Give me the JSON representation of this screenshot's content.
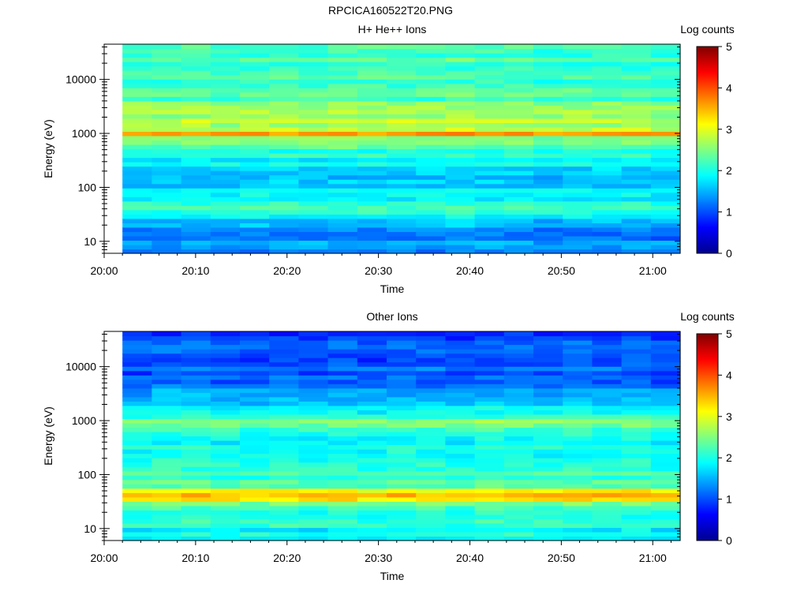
{
  "figure": {
    "title": "RPCICA160522T20.PNG"
  },
  "colors": [
    "#00008f",
    "#0000ff",
    "#0080ff",
    "#00ffff",
    "#80ff80",
    "#ffff00",
    "#ff8000",
    "#ff0000",
    "#800000"
  ],
  "chart_data": [
    {
      "type": "heatmap",
      "title": "H+ He++ Ions",
      "xlabel": "Time",
      "ylabel": "Energy (eV)",
      "x_ticks": [
        "20:00",
        "20:10",
        "20:20",
        "20:30",
        "20:40",
        "20:50",
        "21:00"
      ],
      "x_range": [
        "20:00",
        "21:03"
      ],
      "data_x_range": [
        "20:02",
        "21:03"
      ],
      "y_scale": "log",
      "y_range": [
        6,
        45000
      ],
      "y_ticks": [
        "10",
        "100",
        "1000",
        "10000"
      ],
      "colorbar": {
        "label": "Log counts",
        "range": [
          0,
          5
        ],
        "ticks": [
          "0",
          "1",
          "2",
          "3",
          "4",
          "5"
        ]
      },
      "time_bins": 19,
      "profile": [
        {
          "energy": 8,
          "value": 1.3
        },
        {
          "energy": 15,
          "value": 1.35
        },
        {
          "energy": 28,
          "value": 1.6
        },
        {
          "energy": 45,
          "value": 2.35
        },
        {
          "energy": 65,
          "value": 1.75
        },
        {
          "energy": 150,
          "value": 1.65
        },
        {
          "energy": 400,
          "value": 1.95
        },
        {
          "energy": 800,
          "value": 2.4
        },
        {
          "energy": 1000,
          "value": 3.55
        },
        {
          "energy": 1200,
          "value": 2.8
        },
        {
          "energy": 2300,
          "value": 2.6
        },
        {
          "energy": 5000,
          "value": 2.2
        },
        {
          "energy": 20000,
          "value": 2.15
        }
      ]
    },
    {
      "type": "heatmap",
      "title": "Other Ions",
      "xlabel": "Time",
      "ylabel": "Energy (eV)",
      "x_ticks": [
        "20:00",
        "20:10",
        "20:20",
        "20:30",
        "20:40",
        "20:50",
        "21:00"
      ],
      "x_range": [
        "20:00",
        "21:03"
      ],
      "data_x_range": [
        "20:02",
        "21:03"
      ],
      "y_scale": "log",
      "y_range": [
        6,
        45000
      ],
      "y_ticks": [
        "10",
        "100",
        "1000",
        "10000"
      ],
      "colorbar": {
        "label": "Log counts",
        "range": [
          0,
          5
        ],
        "ticks": [
          "0",
          "1",
          "2",
          "3",
          "4",
          "5"
        ]
      },
      "time_bins": 19,
      "profile": [
        {
          "energy": 8,
          "value": 1.9
        },
        {
          "energy": 15,
          "value": 2.05
        },
        {
          "energy": 28,
          "value": 2.3
        },
        {
          "energy": 35,
          "value": 3.3
        },
        {
          "energy": 45,
          "value": 3.6
        },
        {
          "energy": 60,
          "value": 2.4
        },
        {
          "energy": 150,
          "value": 2.05
        },
        {
          "energy": 500,
          "value": 1.75
        },
        {
          "energy": 1000,
          "value": 2.5
        },
        {
          "energy": 1400,
          "value": 1.85
        },
        {
          "energy": 4000,
          "value": 1.2
        },
        {
          "energy": 20000,
          "value": 0.95
        }
      ]
    }
  ]
}
